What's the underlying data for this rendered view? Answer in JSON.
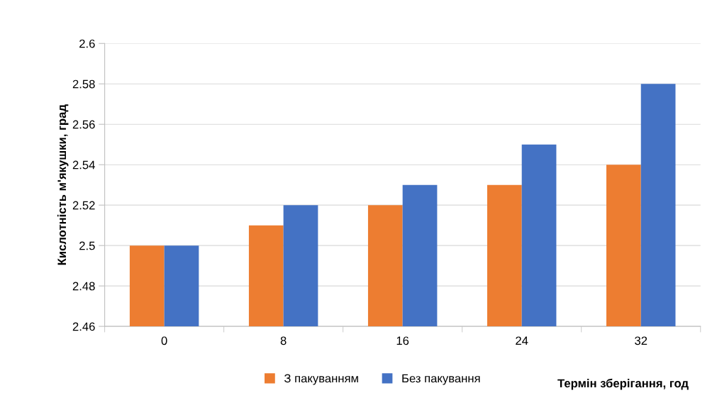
{
  "chart_data": {
    "type": "bar",
    "xlabel": "Термін зберігання, год",
    "ylabel": "Кислотність м'якушки, град",
    "categories": [
      "0",
      "8",
      "16",
      "24",
      "32"
    ],
    "series": [
      {
        "name": "З пакуванням",
        "color": "#ed7d31",
        "values": [
          2.5,
          2.51,
          2.52,
          2.53,
          2.54
        ]
      },
      {
        "name": "Без пакування",
        "color": "#4472c4",
        "values": [
          2.5,
          2.52,
          2.53,
          2.55,
          2.58
        ]
      }
    ],
    "ylim": [
      2.46,
      2.6
    ],
    "yticks": [
      {
        "value": 2.46,
        "label": "2.46"
      },
      {
        "value": 2.48,
        "label": "2.48"
      },
      {
        "value": 2.5,
        "label": "2.5"
      },
      {
        "value": 2.52,
        "label": "2.52"
      },
      {
        "value": 2.54,
        "label": "2.54"
      },
      {
        "value": 2.56,
        "label": "2.56"
      },
      {
        "value": 2.58,
        "label": "2.58"
      },
      {
        "value": 2.6,
        "label": "2.6"
      }
    ],
    "grid": "y",
    "legend": "bottom"
  }
}
